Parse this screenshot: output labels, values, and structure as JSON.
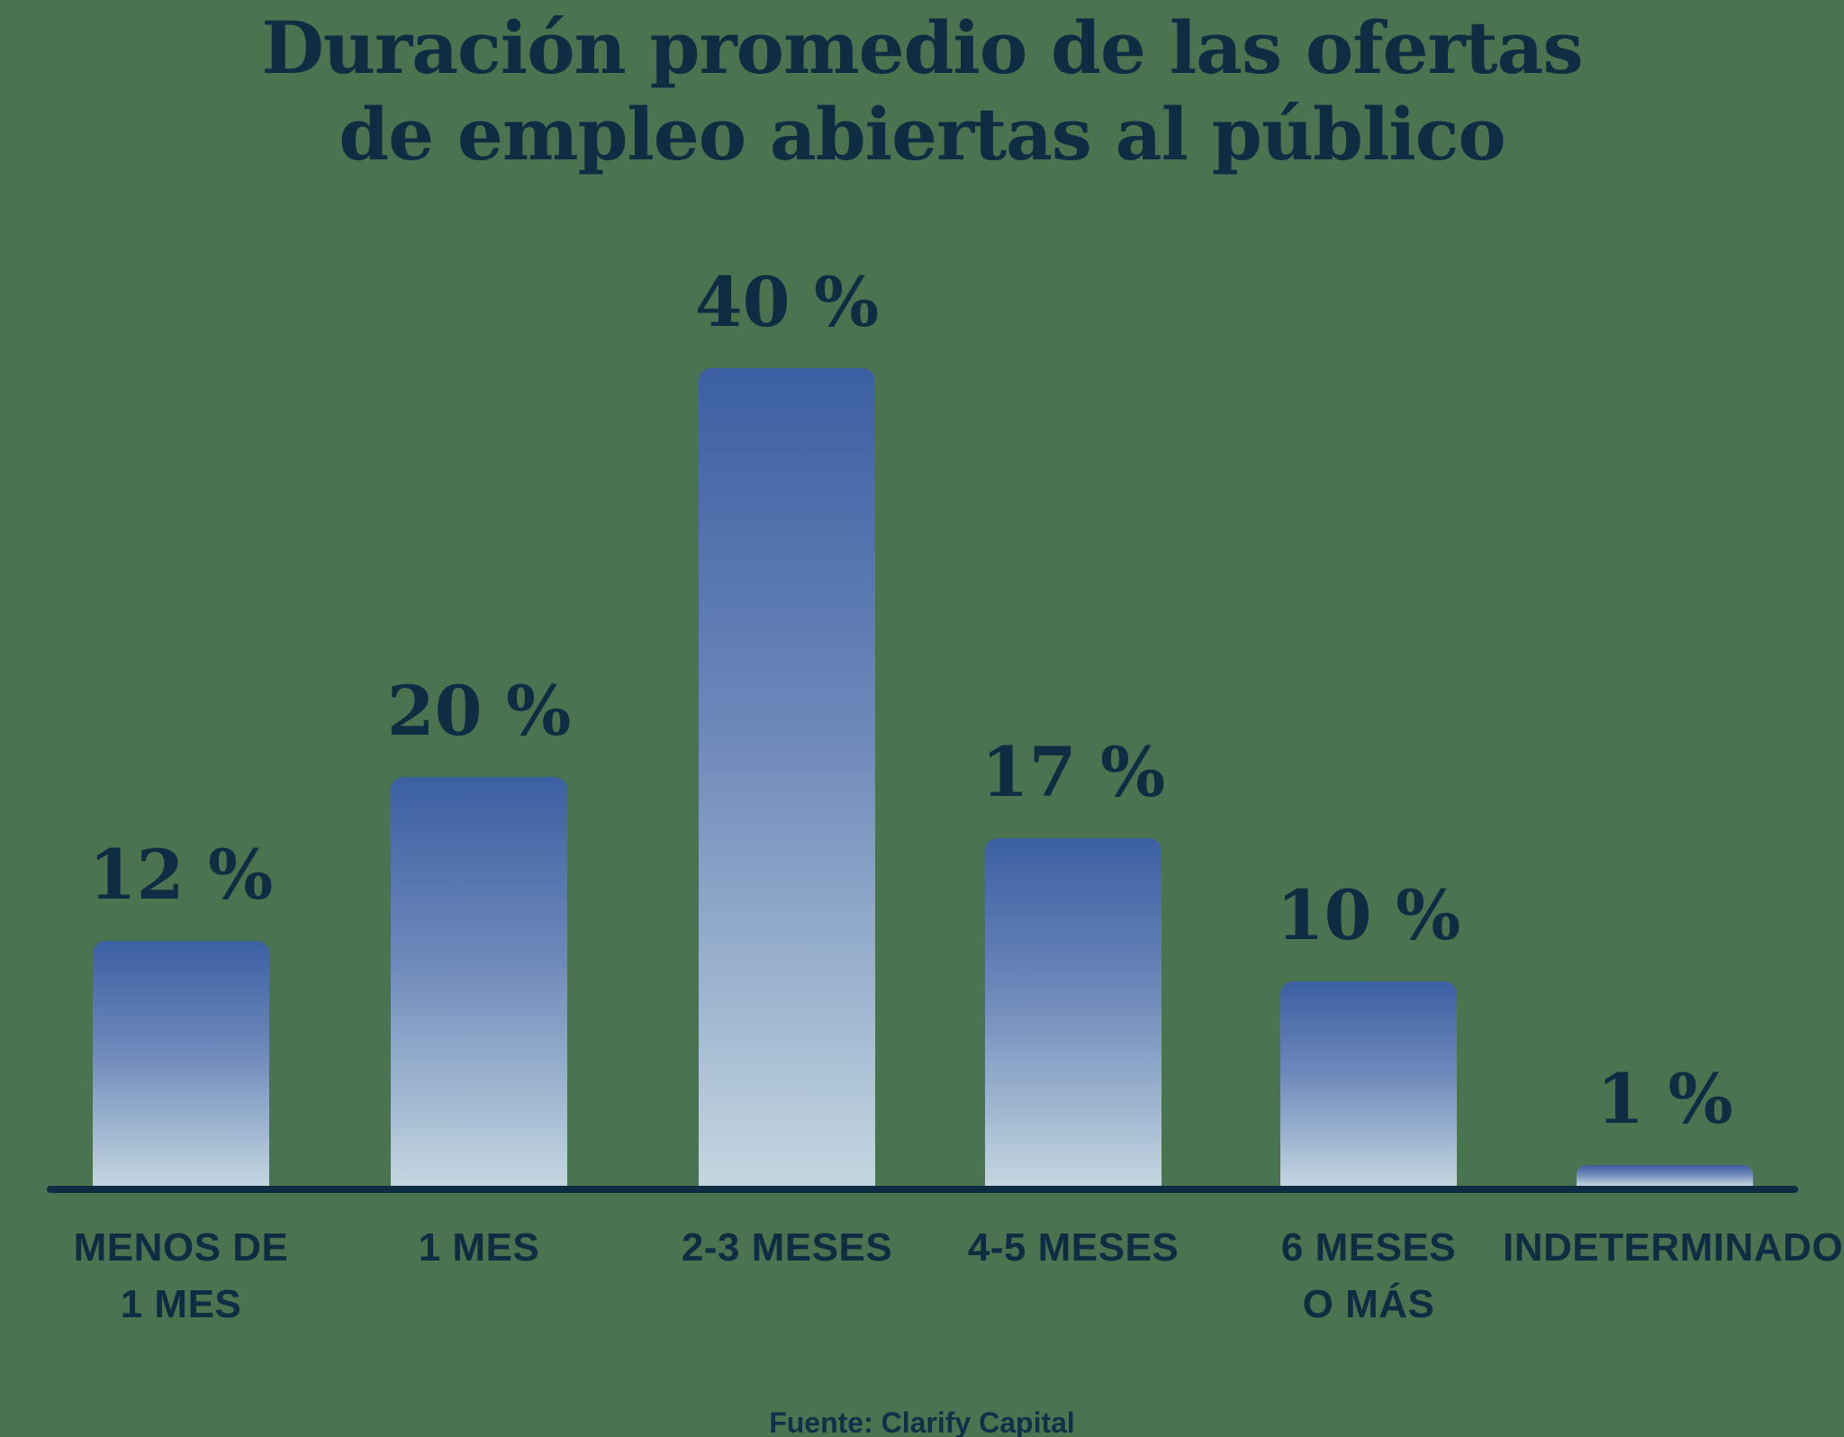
{
  "title": {
    "line1": "Duración promedio de las ofertas",
    "line2": "de empleo abiertas al público"
  },
  "source": "Fuente: Clarify Capital",
  "colors": {
    "background": "#4A7350",
    "ink": "#0E2C42",
    "bar_gradient_top": "#3C5FA3",
    "bar_gradient_mid": "#6D89BA",
    "bar_gradient_bottom": "#C3D6E0"
  },
  "chart_data": {
    "type": "bar",
    "title": "Duración promedio de las ofertas de empleo abiertas al público",
    "categories": [
      "MENOS DE\n1 MES",
      "1 MES",
      "2-3 MESES",
      "4-5 MESES",
      "6 MESES\nO MÁS",
      "INDETERMINADO"
    ],
    "values": [
      12,
      20,
      40,
      17,
      10,
      1
    ],
    "unit": "%",
    "value_labels": [
      "12 %",
      "20 %",
      "40 %",
      "17 %",
      "10 %",
      "1 %"
    ],
    "xlabel": "",
    "ylabel": "",
    "ylim": [
      0,
      42
    ],
    "grid": false,
    "legend": false,
    "source": "Fuente: Clarify Capital"
  }
}
